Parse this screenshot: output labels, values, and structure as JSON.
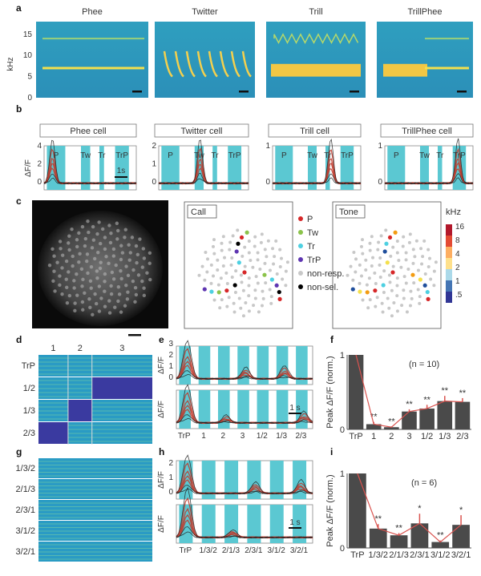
{
  "panel_labels": [
    "a",
    "b",
    "c",
    "d",
    "e",
    "f",
    "g",
    "h",
    "i"
  ],
  "a": {
    "titles": [
      "Phee",
      "Twitter",
      "Trill",
      "TrillPhee"
    ],
    "ylabel": "kHz",
    "yticks": [
      "0",
      "5",
      "10",
      "15"
    ]
  },
  "b": {
    "cells": [
      {
        "title": "Phee cell",
        "yticks": [
          "0",
          "2",
          "4"
        ]
      },
      {
        "title": "Twitter cell",
        "yticks": [
          "0",
          "1",
          "2"
        ]
      },
      {
        "title": "Trill cell",
        "yticks": [
          "0",
          "1"
        ]
      },
      {
        "title": "TrillPhee cell",
        "yticks": [
          "0",
          "1"
        ]
      }
    ],
    "stim_labels": [
      "P",
      "Tw",
      "Tr",
      "TrP"
    ],
    "ylabel": "ΔF/F",
    "scalebar": "1s"
  },
  "c": {
    "call_title": "Call",
    "tone_title": "Tone",
    "legend": [
      {
        "label": "P",
        "color": "#d62728"
      },
      {
        "label": "Tw",
        "color": "#8bc34a"
      },
      {
        "label": "Tr",
        "color": "#4dd0e1"
      },
      {
        "label": "TrP",
        "color": "#5e35b1"
      },
      {
        "label": "non-resp.",
        "color": "#c8c8c8"
      },
      {
        "label": "non-sel.",
        "color": "#000000"
      }
    ],
    "colorbar_title": "kHz",
    "colorbar_ticks": [
      "16",
      "8",
      "4",
      "2",
      "1",
      ".5"
    ]
  },
  "d": {
    "columns": [
      "1",
      "2",
      "3"
    ],
    "rows": [
      "TrP",
      "1/2",
      "1/3",
      "2/3"
    ]
  },
  "e": {
    "ylabel": "ΔF/F",
    "yticks": [
      "0",
      "1",
      "2",
      "3"
    ],
    "xlabels": [
      "TrP",
      "1",
      "2",
      "3",
      "1/2",
      "1/3",
      "2/3"
    ],
    "scalebar": "1 s"
  },
  "g": {
    "rows": [
      "1/3/2",
      "2/1/3",
      "2/3/1",
      "3/1/2",
      "3/2/1"
    ]
  },
  "h": {
    "ylabel": "ΔF/F",
    "yticks": [
      "0",
      "1",
      "2"
    ],
    "xlabels": [
      "TrP",
      "1/3/2",
      "2/1/3",
      "2/3/1",
      "3/1/2",
      "3/2/1"
    ],
    "scalebar": "1 s"
  },
  "chart_data": [
    {
      "panel": "f",
      "type": "bar",
      "annotation": "(n = 10)",
      "ylabel": "Peak ΔF/F (norm.)",
      "yticks": [
        "0",
        "1"
      ],
      "ylim": [
        0,
        1
      ],
      "categories": [
        "TrP",
        "1",
        "2",
        "3",
        "1/2",
        "1/3",
        "2/3"
      ],
      "values": [
        1.0,
        0.07,
        0.03,
        0.24,
        0.28,
        0.38,
        0.37
      ],
      "errors": [
        0.0,
        0.03,
        0.01,
        0.03,
        0.05,
        0.07,
        0.05
      ],
      "significance": [
        "",
        "**",
        "**",
        "**",
        "**",
        "**",
        "**"
      ],
      "bar_color": "#4a4a4a",
      "line_color": "#d9534f"
    },
    {
      "panel": "i",
      "type": "bar",
      "annotation": "(n = 6)",
      "ylabel": "Peak ΔF/F (norm.)",
      "yticks": [
        "0",
        "1"
      ],
      "ylim": [
        0,
        1
      ],
      "categories": [
        "TrP",
        "1/3/2",
        "2/1/3",
        "2/3/1",
        "3/1/2",
        "3/2/1"
      ],
      "values": [
        1.0,
        0.26,
        0.17,
        0.33,
        0.08,
        0.31
      ],
      "errors": [
        0.0,
        0.06,
        0.03,
        0.13,
        0.02,
        0.13
      ],
      "significance": [
        "",
        "**",
        "**",
        "*",
        "**",
        "*"
      ],
      "bar_color": "#4a4a4a",
      "line_color": "#d9534f"
    }
  ]
}
